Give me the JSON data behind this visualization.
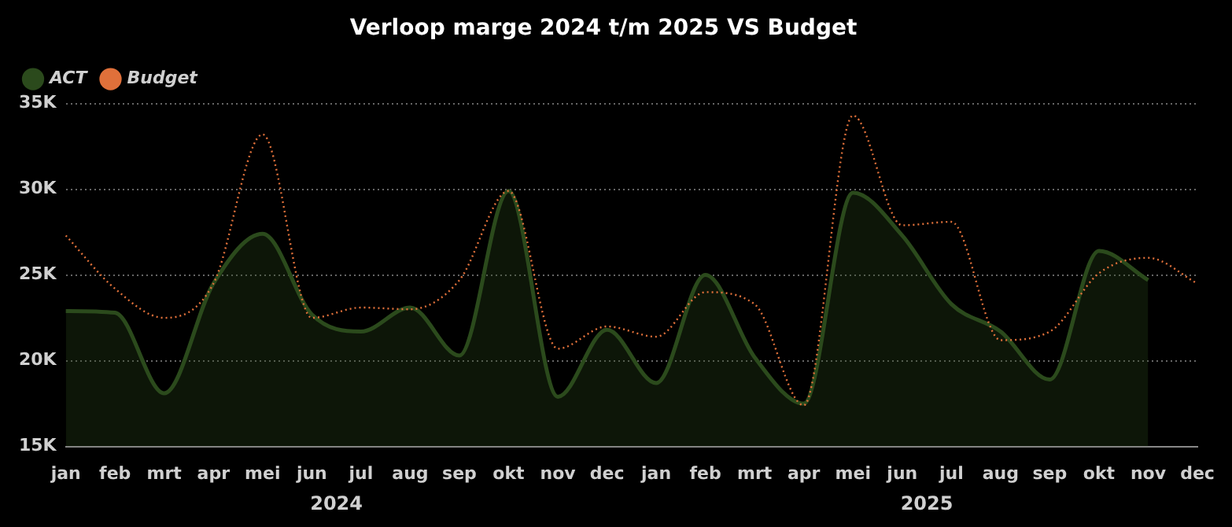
{
  "chart_data": {
    "type": "area",
    "title": "Verloop marge 2024 t/m 2025 VS Budget",
    "categories": [
      "jan",
      "feb",
      "mrt",
      "apr",
      "mei",
      "jun",
      "jul",
      "aug",
      "sep",
      "okt",
      "nov",
      "dec",
      "jan",
      "feb",
      "mrt",
      "apr",
      "mei",
      "jun",
      "jul",
      "aug",
      "sep",
      "okt",
      "nov",
      "dec"
    ],
    "series": [
      {
        "name": "ACT",
        "type": "area",
        "color": "#2b4a1c",
        "line_style": "solid",
        "values": [
          22900,
          22800,
          18100,
          24500,
          27400,
          22700,
          21700,
          23100,
          20300,
          29900,
          17900,
          21800,
          18700,
          25000,
          20200,
          17500,
          29800,
          27300,
          23300,
          21700,
          18900,
          26400,
          24700,
          null
        ]
      },
      {
        "name": "Budget",
        "type": "line",
        "color": "#e0703a",
        "line_style": "dotted",
        "values": [
          27300,
          24200,
          22500,
          24500,
          33200,
          22500,
          23100,
          23000,
          24700,
          29900,
          20700,
          22000,
          21400,
          24000,
          23300,
          17400,
          34300,
          27900,
          28100,
          21200,
          21700,
          25100,
          26000,
          24500
        ]
      }
    ],
    "ylim": [
      15000,
      35000
    ],
    "yticks": [
      {
        "value": 15000,
        "label": "15K"
      },
      {
        "value": 20000,
        "label": "20K"
      },
      {
        "value": 25000,
        "label": "25K"
      },
      {
        "value": 30000,
        "label": "30K"
      },
      {
        "value": 35000,
        "label": "35K"
      }
    ],
    "grid": "y",
    "legend": "top left",
    "marker": "none",
    "annotations": [
      "2024",
      "2025"
    ]
  }
}
